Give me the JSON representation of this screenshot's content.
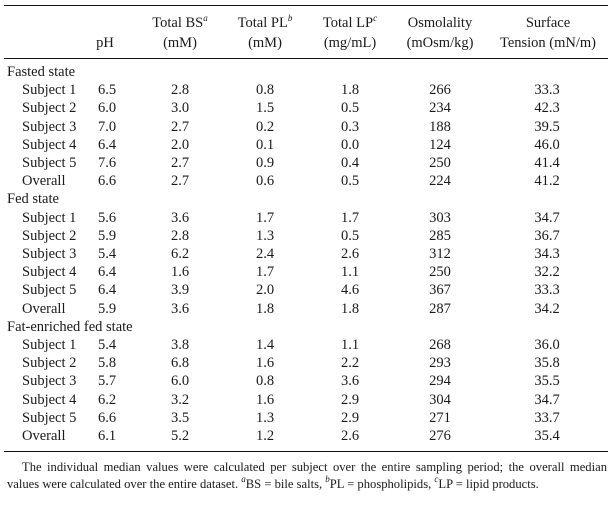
{
  "columns": {
    "ph": "pH",
    "bs": {
      "line1": "Total BS",
      "sup": "a",
      "line2": "(mM)"
    },
    "pl": {
      "line1": "Total PL",
      "sup": "b",
      "line2": "(mM)"
    },
    "lp": {
      "line1": "Total LP",
      "sup": "c",
      "line2": "(mg/mL)"
    },
    "osm": {
      "line1": "Osmolality",
      "line2": "(mOsm/kg)"
    },
    "st": {
      "line1": "Surface",
      "line2": "Tension (mN/m)"
    }
  },
  "groups": [
    {
      "label": "Fasted state",
      "rows": [
        [
          "Subject 1",
          "6.5",
          "2.8",
          "0.8",
          "1.8",
          "266",
          "33.3"
        ],
        [
          "Subject 2",
          "6.0",
          "3.0",
          "1.5",
          "0.5",
          "234",
          "42.3"
        ],
        [
          "Subject 3",
          "7.0",
          "2.7",
          "0.2",
          "0.3",
          "188",
          "39.5"
        ],
        [
          "Subject 4",
          "6.4",
          "2.0",
          "0.1",
          "0.0",
          "124",
          "46.0"
        ],
        [
          "Subject 5",
          "7.6",
          "2.7",
          "0.9",
          "0.4",
          "250",
          "41.4"
        ],
        [
          "Overall",
          "6.6",
          "2.7",
          "0.6",
          "0.5",
          "224",
          "41.2"
        ]
      ]
    },
    {
      "label": "Fed state",
      "rows": [
        [
          "Subject 1",
          "5.6",
          "3.6",
          "1.7",
          "1.7",
          "303",
          "34.7"
        ],
        [
          "Subject 2",
          "5.9",
          "2.8",
          "1.3",
          "0.5",
          "285",
          "36.7"
        ],
        [
          "Subject 3",
          "5.4",
          "6.2",
          "2.4",
          "2.6",
          "312",
          "34.3"
        ],
        [
          "Subject 4",
          "6.4",
          "1.6",
          "1.7",
          "1.1",
          "250",
          "32.2"
        ],
        [
          "Subject 5",
          "6.4",
          "3.9",
          "2.0",
          "4.6",
          "367",
          "33.3"
        ],
        [
          "Overall",
          "5.9",
          "3.6",
          "1.8",
          "1.8",
          "287",
          "34.2"
        ]
      ]
    },
    {
      "label": "Fat-enriched fed state",
      "rows": [
        [
          "Subject 1",
          "5.4",
          "3.8",
          "1.4",
          "1.1",
          "268",
          "36.0"
        ],
        [
          "Subject 2",
          "5.8",
          "6.8",
          "1.6",
          "2.2",
          "293",
          "35.8"
        ],
        [
          "Subject 3",
          "5.7",
          "6.0",
          "0.8",
          "3.6",
          "294",
          "35.5"
        ],
        [
          "Subject 4",
          "6.2",
          "3.2",
          "1.6",
          "2.9",
          "304",
          "34.7"
        ],
        [
          "Subject 5",
          "6.6",
          "3.5",
          "1.3",
          "2.9",
          "271",
          "33.7"
        ],
        [
          "Overall",
          "6.1",
          "5.2",
          "1.2",
          "2.6",
          "276",
          "35.4"
        ]
      ]
    }
  ],
  "footnote": {
    "text1": "The individual median values were calculated per subject over the entire sampling period; the overall median values were calculated over the entire dataset. ",
    "sup_a": "a",
    "def_a": "BS = bile salts, ",
    "sup_b": "b",
    "def_b": "PL = phospholipids, ",
    "sup_c": "c",
    "def_c": "LP = lipid products."
  }
}
